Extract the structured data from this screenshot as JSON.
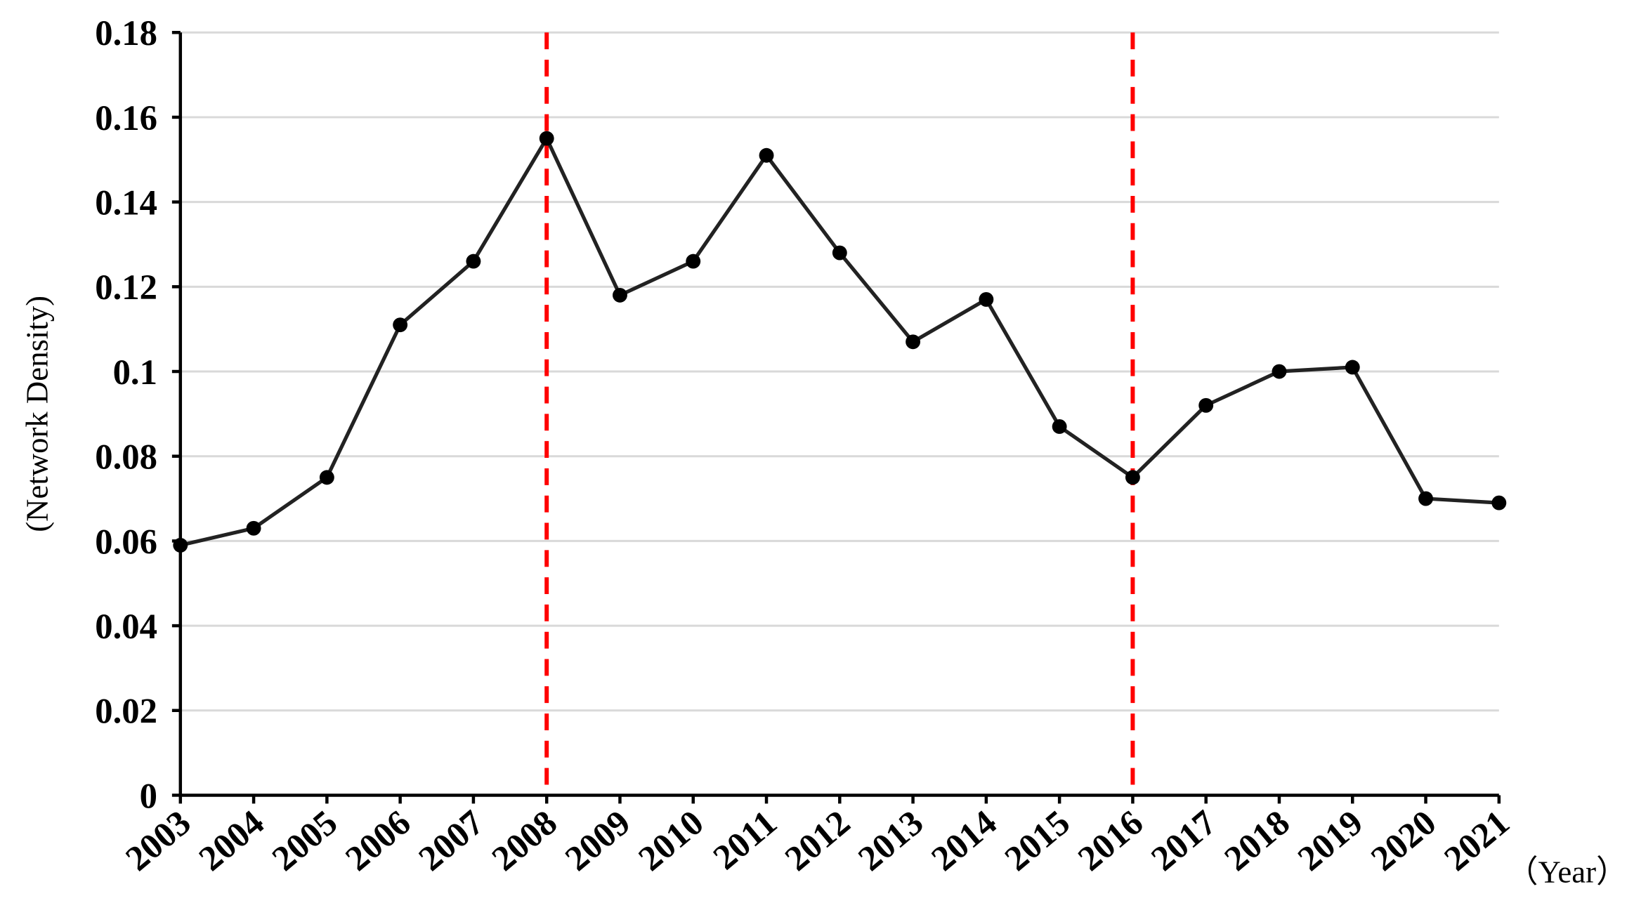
{
  "chart_data": {
    "type": "line",
    "y_label": "(Network Density)",
    "x_label": "（Year）",
    "categories": [
      "2003",
      "2004",
      "2005",
      "2006",
      "2007",
      "2008",
      "2009",
      "2010",
      "2011",
      "2012",
      "2013",
      "2014",
      "2015",
      "2016",
      "2017",
      "2018",
      "2019",
      "2020",
      "2021"
    ],
    "values": [
      0.059,
      0.063,
      0.075,
      0.111,
      0.126,
      0.155,
      0.118,
      0.126,
      0.151,
      0.128,
      0.107,
      0.117,
      0.087,
      0.075,
      0.092,
      0.1,
      0.101,
      0.07,
      0.069
    ],
    "color": "#222222",
    "ylim": [
      0,
      0.18
    ],
    "yticks": [
      0,
      0.02,
      0.04,
      0.06,
      0.08,
      0.1,
      0.12,
      0.14,
      0.16,
      0.18
    ],
    "grid": true,
    "grid_color": "#d9d9d9",
    "vlines": [
      2008,
      2016
    ],
    "vline_color": "#ff0000"
  }
}
